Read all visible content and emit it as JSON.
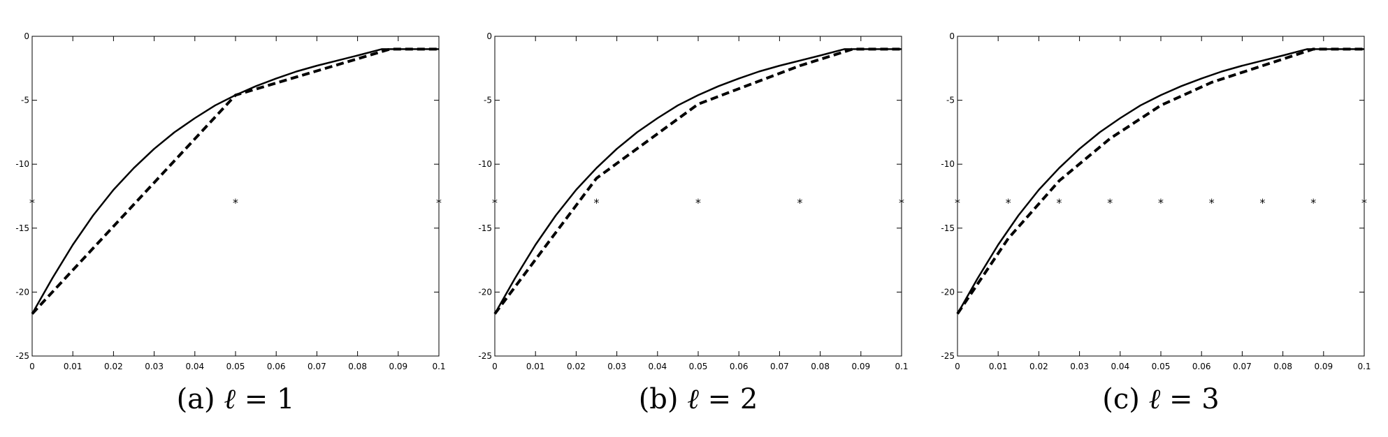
{
  "figure": {
    "panels": [
      {
        "caption_prefix": "(a)",
        "caption_var": "ℓ",
        "caption_eq": "= 1"
      },
      {
        "caption_prefix": "(b)",
        "caption_var": "ℓ",
        "caption_eq": "= 2"
      },
      {
        "caption_prefix": "(c)",
        "caption_var": "ℓ",
        "caption_eq": "= 3"
      }
    ]
  },
  "chart_data": [
    {
      "type": "line",
      "title": "",
      "caption": "(a) ℓ = 1",
      "xlabel": "",
      "ylabel": "",
      "xlim": [
        0,
        0.1
      ],
      "ylim": [
        -25,
        0
      ],
      "xticks": [
        "0",
        "0.01",
        "0.02",
        "0.03",
        "0.04",
        "0.05",
        "0.06",
        "0.07",
        "0.08",
        "0.09",
        "0.1"
      ],
      "yticks": [
        "0",
        "-5",
        "-10",
        "-15",
        "-20",
        "-25"
      ],
      "grid": false,
      "series": [
        {
          "style": "solid",
          "x": [
            0,
            0.005,
            0.01,
            0.015,
            0.02,
            0.025,
            0.03,
            0.035,
            0.04,
            0.045,
            0.05,
            0.055,
            0.06,
            0.065,
            0.07,
            0.075,
            0.08,
            0.086,
            0.09,
            0.1
          ],
          "y": [
            -21.7,
            -18.9,
            -16.3,
            -14.0,
            -12.0,
            -10.3,
            -8.8,
            -7.5,
            -6.4,
            -5.4,
            -4.6,
            -3.9,
            -3.3,
            -2.75,
            -2.3,
            -1.9,
            -1.5,
            -1.0,
            -1.0,
            -1.0
          ]
        },
        {
          "style": "dashed",
          "x": [
            0,
            0.05,
            0.088,
            0.1
          ],
          "y": [
            -21.7,
            -4.6,
            -1.0,
            -1.0
          ]
        },
        {
          "style": "markers",
          "marker": "*",
          "x": [
            0,
            0.05,
            0.1
          ],
          "y": [
            -13,
            -13,
            -13
          ]
        }
      ]
    },
    {
      "type": "line",
      "title": "",
      "caption": "(b) ℓ = 2",
      "xlabel": "",
      "ylabel": "",
      "xlim": [
        0,
        0.1
      ],
      "ylim": [
        -25,
        0
      ],
      "xticks": [
        "0",
        "0.01",
        "0.02",
        "0.03",
        "0.04",
        "0.05",
        "0.06",
        "0.07",
        "0.08",
        "0.09",
        "0.1"
      ],
      "yticks": [
        "0",
        "-5",
        "-10",
        "-15",
        "-20",
        "-25"
      ],
      "grid": false,
      "series": [
        {
          "style": "solid",
          "x": [
            0,
            0.005,
            0.01,
            0.015,
            0.02,
            0.025,
            0.03,
            0.035,
            0.04,
            0.045,
            0.05,
            0.055,
            0.06,
            0.065,
            0.07,
            0.075,
            0.08,
            0.086,
            0.09,
            0.1
          ],
          "y": [
            -21.7,
            -18.9,
            -16.3,
            -14.0,
            -12.0,
            -10.3,
            -8.8,
            -7.5,
            -6.4,
            -5.4,
            -4.6,
            -3.9,
            -3.3,
            -2.75,
            -2.3,
            -1.9,
            -1.5,
            -1.0,
            -1.0,
            -1.0
          ]
        },
        {
          "style": "dashed",
          "x": [
            0,
            0.025,
            0.05,
            0.075,
            0.088,
            0.1
          ],
          "y": [
            -21.7,
            -11.1,
            -5.3,
            -2.3,
            -1.0,
            -1.0
          ]
        },
        {
          "style": "markers",
          "marker": "*",
          "x": [
            0,
            0.025,
            0.05,
            0.075,
            0.1
          ],
          "y": [
            -13,
            -13,
            -13,
            -13,
            -13
          ]
        }
      ]
    },
    {
      "type": "line",
      "title": "",
      "caption": "(c) ℓ = 3",
      "xlabel": "",
      "ylabel": "",
      "xlim": [
        0,
        0.1
      ],
      "ylim": [
        -25,
        0
      ],
      "xticks": [
        "0",
        "0.01",
        "0.02",
        "0.03",
        "0.04",
        "0.05",
        "0.06",
        "0.07",
        "0.08",
        "0.09",
        "0.1"
      ],
      "yticks": [
        "0",
        "-5",
        "-10",
        "-15",
        "-20",
        "-25"
      ],
      "grid": false,
      "series": [
        {
          "style": "solid",
          "x": [
            0,
            0.005,
            0.01,
            0.015,
            0.02,
            0.025,
            0.03,
            0.035,
            0.04,
            0.045,
            0.05,
            0.055,
            0.06,
            0.065,
            0.07,
            0.075,
            0.08,
            0.086,
            0.09,
            0.1
          ],
          "y": [
            -21.7,
            -18.9,
            -16.3,
            -14.0,
            -12.0,
            -10.3,
            -8.8,
            -7.5,
            -6.4,
            -5.4,
            -4.6,
            -3.9,
            -3.3,
            -2.75,
            -2.3,
            -1.9,
            -1.5,
            -1.0,
            -1.0,
            -1.0
          ]
        },
        {
          "style": "dashed",
          "x": [
            0,
            0.0125,
            0.025,
            0.0375,
            0.05,
            0.0625,
            0.075,
            0.0875,
            0.1
          ],
          "y": [
            -21.7,
            -15.8,
            -11.3,
            -8.0,
            -5.4,
            -3.6,
            -2.3,
            -1.0,
            -1.0
          ]
        },
        {
          "style": "markers",
          "marker": "*",
          "x": [
            0,
            0.0125,
            0.025,
            0.0375,
            0.05,
            0.0625,
            0.075,
            0.0875,
            0.1
          ],
          "y": [
            -13,
            -13,
            -13,
            -13,
            -13,
            -13,
            -13,
            -13,
            -13
          ]
        }
      ]
    }
  ]
}
